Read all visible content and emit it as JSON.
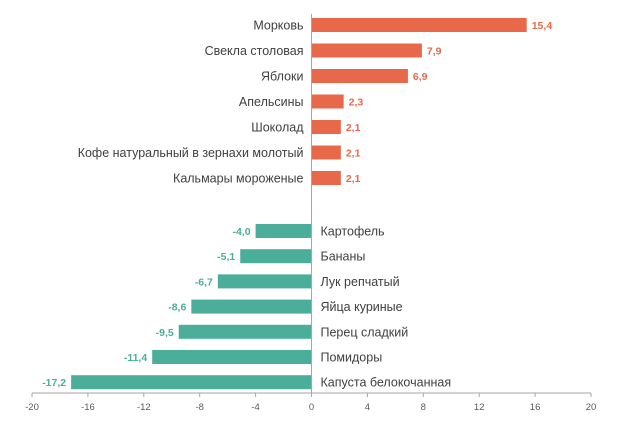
{
  "chart_data": {
    "type": "bar",
    "orientation": "horizontal",
    "title": "",
    "xlabel": "",
    "ylabel": "",
    "xlim": [
      -20,
      20
    ],
    "xticks": [
      -20,
      -16,
      -12,
      -8,
      -4,
      0,
      4,
      8,
      12,
      16,
      20
    ],
    "grid": false,
    "colors": {
      "positive": "#E8694A",
      "negative": "#4AAE9B",
      "axis": "#A6A6A6",
      "label": "#404040"
    },
    "categories": [
      "Морковь",
      "Свекла столовая",
      "Яблоки",
      "Апельсины",
      "Шоколад",
      "Кофе натуральный в зернахи молотый",
      "Кальмары мороженые",
      "Картофель",
      "Бананы",
      "Лук репчатый",
      "Яйца куриные",
      "Перец сладкий",
      "Помидоры",
      "Капуста белокочанная"
    ],
    "values": [
      15.4,
      7.9,
      6.9,
      2.3,
      2.1,
      2.1,
      2.1,
      -4.0,
      -5.1,
      -6.7,
      -8.6,
      -9.5,
      -11.4,
      -17.2
    ],
    "value_labels": [
      "15,4",
      "7,9",
      "6,9",
      "2,3",
      "2,1",
      "2,1",
      "2,1",
      "-4,0",
      "-5,1",
      "-6,7",
      "-8,6",
      "-9,5",
      "-11,4",
      "-17,2"
    ]
  }
}
